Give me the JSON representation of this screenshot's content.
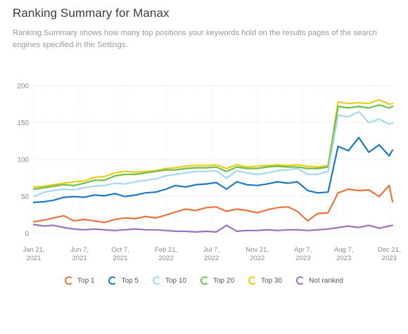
{
  "header": {
    "title": "Ranking Summary for Manax",
    "subtitle": "Ranking Summary shows how many top positions your keywords hold on the results pages of the search engines specified in the Settings."
  },
  "chart_data": {
    "type": "line",
    "title": "",
    "xlabel": "",
    "ylabel": "",
    "ylim": [
      0,
      200
    ],
    "yticks": [
      0,
      50,
      100,
      150,
      200
    ],
    "xlim": [
      "2021-01-21",
      "2023-12-31"
    ],
    "xticks": [
      {
        "date": "2021-01-21",
        "line1": "Jan 21,",
        "line2": "2021"
      },
      {
        "date": "2021-06-07",
        "line1": "Jun 7,",
        "line2": "2021"
      },
      {
        "date": "2021-10-07",
        "line1": "Oct 7,",
        "line2": "2021"
      },
      {
        "date": "2022-02-21",
        "line1": "Feb 21,",
        "line2": "2022"
      },
      {
        "date": "2022-07-07",
        "line1": "Jul 7,",
        "line2": "2022"
      },
      {
        "date": "2022-11-21",
        "line1": "Nov 21,",
        "line2": "2022"
      },
      {
        "date": "2023-04-07",
        "line1": "Apr 7,",
        "line2": "2023"
      },
      {
        "date": "2023-08-07",
        "line1": "Aug 7,",
        "line2": "2023"
      },
      {
        "date": "2023-12-21",
        "line1": "Dec 21,",
        "line2": "2023"
      }
    ],
    "grid": true,
    "legend_position": "bottom",
    "x": [
      "2021-01-21",
      "2021-02-21",
      "2021-03-21",
      "2021-04-21",
      "2021-05-21",
      "2021-06-21",
      "2021-07-21",
      "2021-08-21",
      "2021-09-21",
      "2021-10-21",
      "2021-11-21",
      "2021-12-21",
      "2022-01-21",
      "2022-02-21",
      "2022-03-21",
      "2022-04-21",
      "2022-05-21",
      "2022-06-21",
      "2022-07-21",
      "2022-08-21",
      "2022-09-21",
      "2022-10-21",
      "2022-11-21",
      "2022-12-21",
      "2023-01-21",
      "2023-02-21",
      "2023-03-21",
      "2023-04-21",
      "2023-05-21",
      "2023-06-21",
      "2023-07-21",
      "2023-08-21",
      "2023-09-21",
      "2023-10-21",
      "2023-11-21",
      "2023-12-21",
      "2023-12-31"
    ],
    "series": [
      {
        "name": "Top 1",
        "color": "#e8743b",
        "values": [
          16,
          18,
          21,
          24,
          17,
          19,
          17,
          15,
          19,
          21,
          20,
          23,
          21,
          25,
          29,
          33,
          31,
          35,
          36,
          30,
          33,
          31,
          28,
          32,
          35,
          36,
          30,
          17,
          27,
          28,
          55,
          60,
          58,
          59,
          50,
          65,
          43
        ]
      },
      {
        "name": "Top 5",
        "color": "#1c79c0",
        "values": [
          42,
          43,
          45,
          49,
          50,
          49,
          52,
          51,
          54,
          50,
          52,
          55,
          56,
          60,
          65,
          63,
          66,
          67,
          69,
          60,
          70,
          66,
          65,
          67,
          70,
          68,
          70,
          58,
          55,
          56,
          118,
          112,
          130,
          110,
          120,
          105,
          113
        ]
      },
      {
        "name": "Top 10",
        "color": "#a6d8ef",
        "values": [
          50,
          56,
          58,
          60,
          59,
          62,
          64,
          65,
          68,
          67,
          70,
          72,
          74,
          78,
          80,
          82,
          84,
          84,
          85,
          75,
          85,
          82,
          80,
          82,
          85,
          86,
          88,
          80,
          80,
          84,
          160,
          158,
          165,
          150,
          155,
          148,
          150
        ]
      },
      {
        "name": "Top 20",
        "color": "#6cc04a",
        "values": [
          60,
          62,
          64,
          66,
          65,
          68,
          72,
          72,
          78,
          80,
          80,
          82,
          84,
          86,
          86,
          88,
          89,
          89,
          90,
          84,
          90,
          88,
          88,
          90,
          91,
          90,
          90,
          88,
          88,
          90,
          172,
          170,
          172,
          170,
          174,
          170,
          172
        ]
      },
      {
        "name": "Top 30",
        "color": "#e7cf18",
        "values": [
          63,
          64,
          66,
          68,
          70,
          71,
          76,
          77,
          82,
          84,
          83,
          84,
          85,
          88,
          89,
          91,
          92,
          92,
          93,
          88,
          93,
          90,
          91,
          92,
          93,
          92,
          93,
          91,
          90,
          92,
          178,
          176,
          177,
          176,
          181,
          175,
          176
        ]
      },
      {
        "name": "Not ranked",
        "color": "#9b73b8",
        "values": [
          12,
          10,
          11,
          8,
          6,
          5,
          6,
          5,
          4,
          5,
          6,
          5,
          5,
          4,
          3,
          3,
          2,
          3,
          2,
          11,
          3,
          4,
          4,
          5,
          4,
          5,
          5,
          4,
          5,
          6,
          8,
          10,
          8,
          11,
          7,
          10,
          11
        ]
      }
    ]
  }
}
